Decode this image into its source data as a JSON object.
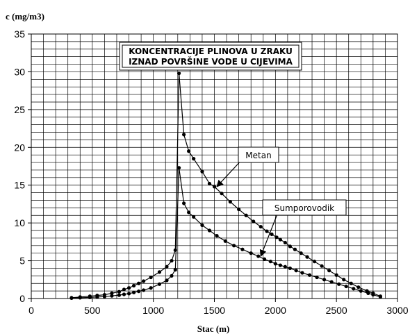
{
  "chart_data": {
    "type": "line",
    "title_lines": [
      "KONCENTRACIJE PLINOVA U ZRAKU",
      "IZNAD POVRŠINE VODE U CIJEVIMA"
    ],
    "xlabel": "Stac (m)",
    "ylabel": "c (mg/m3)",
    "xlim": [
      0,
      3000
    ],
    "ylim": [
      0,
      35
    ],
    "xticks": [
      0,
      500,
      1000,
      1500,
      2000,
      2500,
      3000
    ],
    "yticks": [
      0,
      5,
      10,
      15,
      20,
      25,
      30,
      35
    ],
    "grid": true,
    "legend": "none",
    "annotations": [
      {
        "text": "Metan",
        "series": "Metan",
        "arrow_to": [
          1520,
          14.8
        ]
      },
      {
        "text": "Sumporovodik",
        "series": "Sumporovodik",
        "arrow_to": [
          1880,
          5.6
        ]
      }
    ],
    "series": [
      {
        "name": "Metan",
        "color": "#000000",
        "x": [
          330,
          400,
          480,
          540,
          600,
          660,
          720,
          760,
          800,
          840,
          880,
          920,
          980,
          1050,
          1110,
          1150,
          1180,
          1210,
          1250,
          1290,
          1330,
          1400,
          1460,
          1500,
          1560,
          1630,
          1700,
          1760,
          1820,
          1880,
          1930,
          1970,
          2010,
          2040,
          2080,
          2120,
          2160,
          2210,
          2260,
          2320,
          2380,
          2440,
          2500,
          2560,
          2620,
          2680,
          2750,
          2800,
          2860
        ],
        "y": [
          0.1,
          0.2,
          0.3,
          0.4,
          0.5,
          0.7,
          0.9,
          1.2,
          1.4,
          1.7,
          2.0,
          2.3,
          2.8,
          3.5,
          4.2,
          5.0,
          6.4,
          29.8,
          21.7,
          19.5,
          18.5,
          16.8,
          15.2,
          14.8,
          13.9,
          12.8,
          11.8,
          11.0,
          10.2,
          9.5,
          8.9,
          8.5,
          8.1,
          7.8,
          7.4,
          6.9,
          6.5,
          6.0,
          5.5,
          4.9,
          4.3,
          3.7,
          3.1,
          2.5,
          2.0,
          1.5,
          1.0,
          0.7,
          0.3
        ]
      },
      {
        "name": "Sumporovodik",
        "color": "#000000",
        "x": [
          330,
          400,
          480,
          540,
          600,
          660,
          720,
          760,
          800,
          840,
          880,
          920,
          980,
          1050,
          1110,
          1150,
          1180,
          1210,
          1250,
          1290,
          1330,
          1400,
          1460,
          1520,
          1590,
          1660,
          1730,
          1800,
          1860,
          1910,
          1960,
          2000,
          2040,
          2080,
          2120,
          2170,
          2220,
          2280,
          2340,
          2400,
          2460,
          2520,
          2580,
          2640,
          2700,
          2760,
          2800,
          2860
        ],
        "y": [
          0.05,
          0.1,
          0.15,
          0.2,
          0.25,
          0.35,
          0.45,
          0.55,
          0.65,
          0.8,
          0.95,
          1.1,
          1.4,
          1.9,
          2.4,
          3.0,
          3.8,
          17.3,
          12.6,
          11.4,
          10.8,
          9.7,
          9.0,
          8.3,
          7.6,
          7.0,
          6.5,
          6.0,
          5.6,
          5.2,
          4.9,
          4.6,
          4.4,
          4.2,
          4.0,
          3.7,
          3.4,
          3.1,
          2.8,
          2.5,
          2.2,
          1.9,
          1.6,
          1.3,
          1.0,
          0.7,
          0.5,
          0.2
        ]
      }
    ]
  }
}
